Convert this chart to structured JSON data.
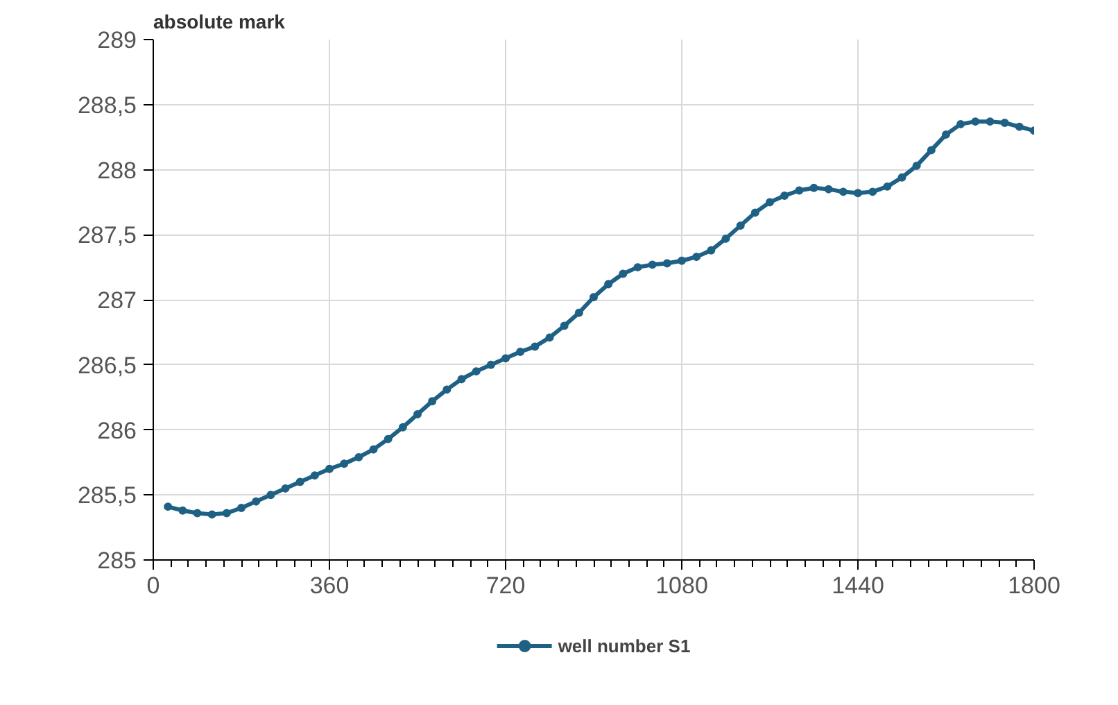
{
  "chart_data": {
    "type": "line",
    "ylabel": "absolute mark",
    "x": [
      30,
      60,
      90,
      120,
      150,
      180,
      210,
      240,
      270,
      300,
      330,
      360,
      390,
      420,
      450,
      480,
      510,
      540,
      570,
      600,
      630,
      660,
      690,
      720,
      750,
      780,
      810,
      840,
      870,
      900,
      930,
      960,
      990,
      1020,
      1050,
      1080,
      1110,
      1140,
      1170,
      1200,
      1230,
      1260,
      1290,
      1320,
      1350,
      1380,
      1410,
      1440,
      1470,
      1500,
      1530,
      1560,
      1590,
      1620,
      1650,
      1680,
      1710,
      1740,
      1770,
      1800
    ],
    "series": [
      {
        "name": "well number S1",
        "color": "#1f6185",
        "values": [
          285.41,
          285.38,
          285.36,
          285.35,
          285.36,
          285.4,
          285.45,
          285.5,
          285.55,
          285.6,
          285.65,
          285.7,
          285.74,
          285.79,
          285.85,
          285.93,
          286.02,
          286.12,
          286.22,
          286.31,
          286.39,
          286.45,
          286.5,
          286.55,
          286.6,
          286.64,
          286.71,
          286.8,
          286.9,
          287.02,
          287.12,
          287.2,
          287.25,
          287.27,
          287.28,
          287.3,
          287.33,
          287.38,
          287.47,
          287.57,
          287.67,
          287.75,
          287.8,
          287.84,
          287.86,
          287.85,
          287.83,
          287.82,
          287.83,
          287.87,
          287.94,
          288.03,
          288.15,
          288.27,
          288.35,
          288.37,
          288.37,
          288.36,
          288.33,
          288.3
        ]
      }
    ],
    "xlim": [
      0,
      1800
    ],
    "xticks": [
      0,
      360,
      720,
      1080,
      1440,
      1800
    ],
    "ylim": [
      285,
      289
    ],
    "yticks": [
      285,
      {
        "value": 285.5,
        "label": "285,5"
      },
      286,
      {
        "value": 286.5,
        "label": "286,5"
      },
      287,
      {
        "value": 287.5,
        "label": "287,5"
      },
      288,
      {
        "value": 288.5,
        "label": "288,5"
      },
      289
    ],
    "grid": true,
    "legend": "bottom",
    "marker": "circle",
    "line_style": "solid"
  }
}
